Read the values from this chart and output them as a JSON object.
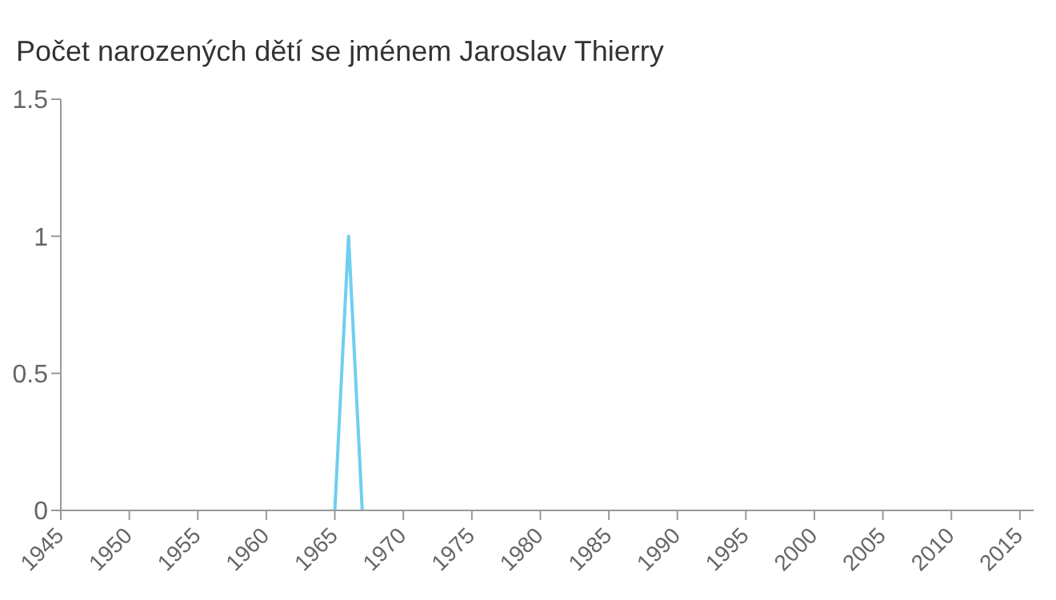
{
  "chart_data": {
    "type": "line",
    "title": "Počet narozených dětí se jménem Jaroslav Thierry",
    "x": [
      1965,
      1966,
      1967
    ],
    "series": [
      {
        "color": "#6ecff0",
        "values": [
          0,
          1,
          0
        ]
      }
    ],
    "xlim": [
      1945,
      2016
    ],
    "xticks": [
      1945,
      1950,
      1955,
      1960,
      1965,
      1970,
      1975,
      1980,
      1985,
      1990,
      1995,
      2000,
      2005,
      2010,
      2015
    ],
    "ylim": [
      0,
      1.5
    ],
    "yticks": [
      0,
      0.5,
      1,
      1.5
    ],
    "grid": false,
    "marker": "none",
    "line_style": "solid"
  }
}
